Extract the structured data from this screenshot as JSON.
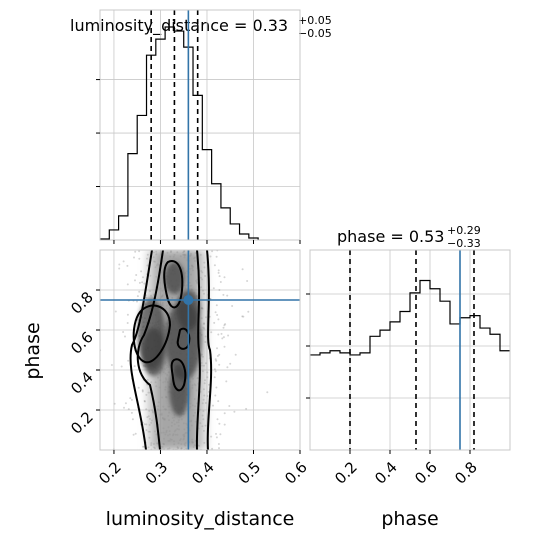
{
  "chart_data": {
    "type": "corner",
    "parameters": [
      "luminosity_distance",
      "phase"
    ],
    "truth": {
      "luminosity_distance": 0.36,
      "phase": 0.75
    },
    "marginals": [
      {
        "parameter": "luminosity_distance",
        "title_main": "luminosity_distance = 0.33",
        "title_sup": "+0.05",
        "title_sub": "−0.05",
        "median": 0.33,
        "quantiles": [
          0.28,
          0.33,
          0.38
        ],
        "bin_edges": [
          0.17,
          0.19,
          0.21,
          0.23,
          0.25,
          0.27,
          0.29,
          0.31,
          0.33,
          0.35,
          0.37,
          0.39,
          0.41,
          0.43,
          0.45,
          0.47,
          0.49,
          0.51
        ],
        "counts": [
          0.5,
          5,
          12,
          43,
          62,
          92,
          100,
          106,
          104,
          96,
          72,
          45,
          28,
          16,
          8,
          3,
          1
        ]
      },
      {
        "parameter": "phase",
        "title_main": "phase = 0.53",
        "title_sup": "+0.29",
        "title_sub": "−0.33",
        "median": 0.53,
        "quantiles": [
          0.2,
          0.53,
          0.82
        ],
        "bin_edges": [
          0.0,
          0.05,
          0.1,
          0.15,
          0.2,
          0.25,
          0.3,
          0.35,
          0.4,
          0.45,
          0.5,
          0.55,
          0.6,
          0.65,
          0.7,
          0.75,
          0.8,
          0.85,
          0.9,
          0.95,
          1.0
        ],
        "counts": [
          46,
          47,
          48,
          47,
          46,
          47,
          55,
          58,
          62,
          67,
          76,
          82,
          78,
          72,
          61,
          64,
          65,
          59,
          56,
          48
        ]
      }
    ],
    "joint": {
      "x": "luminosity_distance",
      "y": "phase",
      "xlim": [
        0.17,
        0.6
      ],
      "ylim": [
        0.0,
        1.0
      ],
      "map_point": [
        0.36,
        0.75
      ]
    },
    "ticks": {
      "luminosity_distance": [
        "0.2",
        "0.3",
        "0.4",
        "0.5",
        "0.6"
      ],
      "phase_y": [
        "0.2",
        "0.4",
        "0.6",
        "0.8"
      ],
      "phase_x": [
        "0.2",
        "0.4",
        "0.6",
        "0.8"
      ]
    },
    "xlabels": [
      "luminosity_distance",
      "phase"
    ],
    "ylabels": [
      "phase"
    ],
    "colors": {
      "truth": "#3274a8",
      "line": "#000000",
      "grid": "#c8c8c8"
    }
  }
}
